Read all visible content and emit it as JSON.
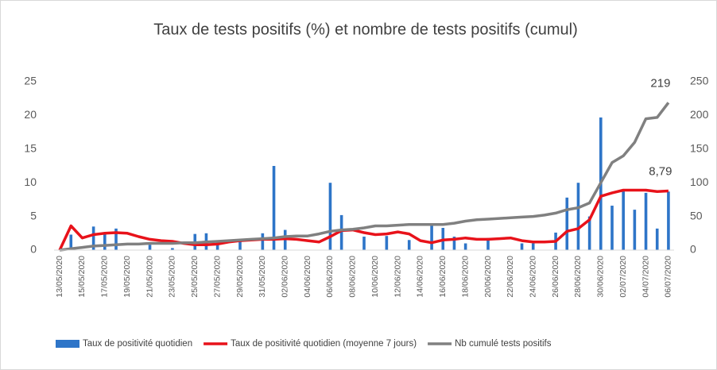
{
  "chart_data": {
    "type": "bar-line",
    "title": "Taux de tests positifs (%) et nombre de tests positifs (cumul)",
    "categories": [
      "13/05/2020",
      null,
      "15/05/2020",
      null,
      "17/05/2020",
      null,
      "19/05/2020",
      null,
      "21/05/2020",
      null,
      "23/05/2020",
      null,
      "25/05/2020",
      null,
      "27/05/2020",
      null,
      "29/05/2020",
      null,
      "31/05/2020",
      null,
      "02/06/2020",
      null,
      "04/06/2020",
      null,
      "06/06/2020",
      null,
      "08/06/2020",
      null,
      "10/06/2020",
      null,
      "12/06/2020",
      null,
      "14/06/2020",
      null,
      "16/06/2020",
      null,
      "18/06/2020",
      null,
      "20/06/2020",
      null,
      "22/06/2020",
      null,
      "24/06/2020",
      null,
      "26/06/2020",
      null,
      "28/06/2020",
      null,
      "30/06/2020",
      null,
      "02/07/2020",
      null,
      "04/07/2020",
      null,
      "06/07/2020"
    ],
    "ylim": [
      0,
      25
    ],
    "yticks": [
      0,
      5,
      10,
      15,
      20,
      25
    ],
    "y2lim": [
      0,
      250
    ],
    "y2ticks": [
      0,
      50,
      100,
      150,
      200,
      250
    ],
    "grid": false,
    "legend": "bottom",
    "series": [
      {
        "name": "Taux de positivité quotidien",
        "kind": "bar",
        "color": "#2e75c8",
        "values": [
          0,
          2.3,
          0,
          3.5,
          2.4,
          3.2,
          0,
          0,
          0.8,
          0,
          0.3,
          0,
          2.4,
          2.5,
          1.2,
          0,
          1.3,
          0,
          2.5,
          12.5,
          3,
          0,
          0,
          0,
          10,
          5.2,
          0,
          2,
          0,
          2.1,
          0,
          1.5,
          0,
          3.6,
          3.3,
          2,
          1,
          0,
          1.8,
          0,
          0,
          1,
          1,
          0,
          2.6,
          7.8,
          10,
          5,
          19.7,
          6.6,
          8.8,
          6,
          8.5,
          3.2,
          8.7
        ]
      },
      {
        "name": "Taux de positivité quotidien (moyenne 7 jours)",
        "kind": "line",
        "color": "#e8121a",
        "values": [
          0,
          3.6,
          1.8,
          2.3,
          2.5,
          2.6,
          2.5,
          2.0,
          1.6,
          1.4,
          1.3,
          1.0,
          0.8,
          0.8,
          0.9,
          1.2,
          1.4,
          1.5,
          1.6,
          1.6,
          1.7,
          1.6,
          1.4,
          1.2,
          2.0,
          2.9,
          3.0,
          2.6,
          2.3,
          2.4,
          2.7,
          2.4,
          1.4,
          1.1,
          1.5,
          1.6,
          1.8,
          1.6,
          1.6,
          1.7,
          1.8,
          1.4,
          1.2,
          1.2,
          1.3,
          2.8,
          3.2,
          4.5,
          8.0,
          8.5,
          8.9,
          8.9,
          8.9,
          8.7,
          8.79
        ],
        "value_labels": [
          null,
          null,
          null,
          null,
          null,
          null,
          null,
          null,
          null,
          null,
          null,
          null,
          null,
          null,
          null,
          null,
          null,
          null,
          null,
          null,
          null,
          null,
          null,
          null,
          null,
          null,
          null,
          null,
          null,
          null,
          null,
          null,
          null,
          null,
          null,
          null,
          null,
          null,
          null,
          null,
          null,
          null,
          null,
          null,
          null,
          null,
          null,
          null,
          null,
          null,
          null,
          null,
          null,
          null,
          "8,79"
        ]
      },
      {
        "name": "Nb cumulé tests positifs",
        "kind": "line",
        "axis": "y2",
        "color": "#808080",
        "values": [
          0,
          2,
          4,
          6,
          7,
          8,
          9,
          9,
          10,
          10,
          10,
          11,
          11,
          12,
          13,
          14,
          15,
          16,
          17,
          18,
          20,
          21,
          21,
          24,
          28,
          30,
          31,
          33,
          36,
          36,
          37,
          38,
          38,
          38,
          38,
          40,
          43,
          45,
          46,
          47,
          48,
          49,
          50,
          52,
          55,
          60,
          63,
          70,
          100,
          130,
          140,
          160,
          195,
          197,
          219
        ],
        "value_labels": [
          null,
          null,
          null,
          null,
          null,
          null,
          null,
          null,
          null,
          null,
          null,
          null,
          null,
          null,
          null,
          null,
          null,
          null,
          null,
          null,
          null,
          null,
          null,
          null,
          null,
          null,
          null,
          null,
          null,
          null,
          null,
          null,
          null,
          null,
          null,
          null,
          null,
          null,
          null,
          null,
          null,
          null,
          null,
          null,
          null,
          null,
          null,
          null,
          null,
          null,
          null,
          null,
          null,
          null,
          "219"
        ]
      }
    ]
  }
}
